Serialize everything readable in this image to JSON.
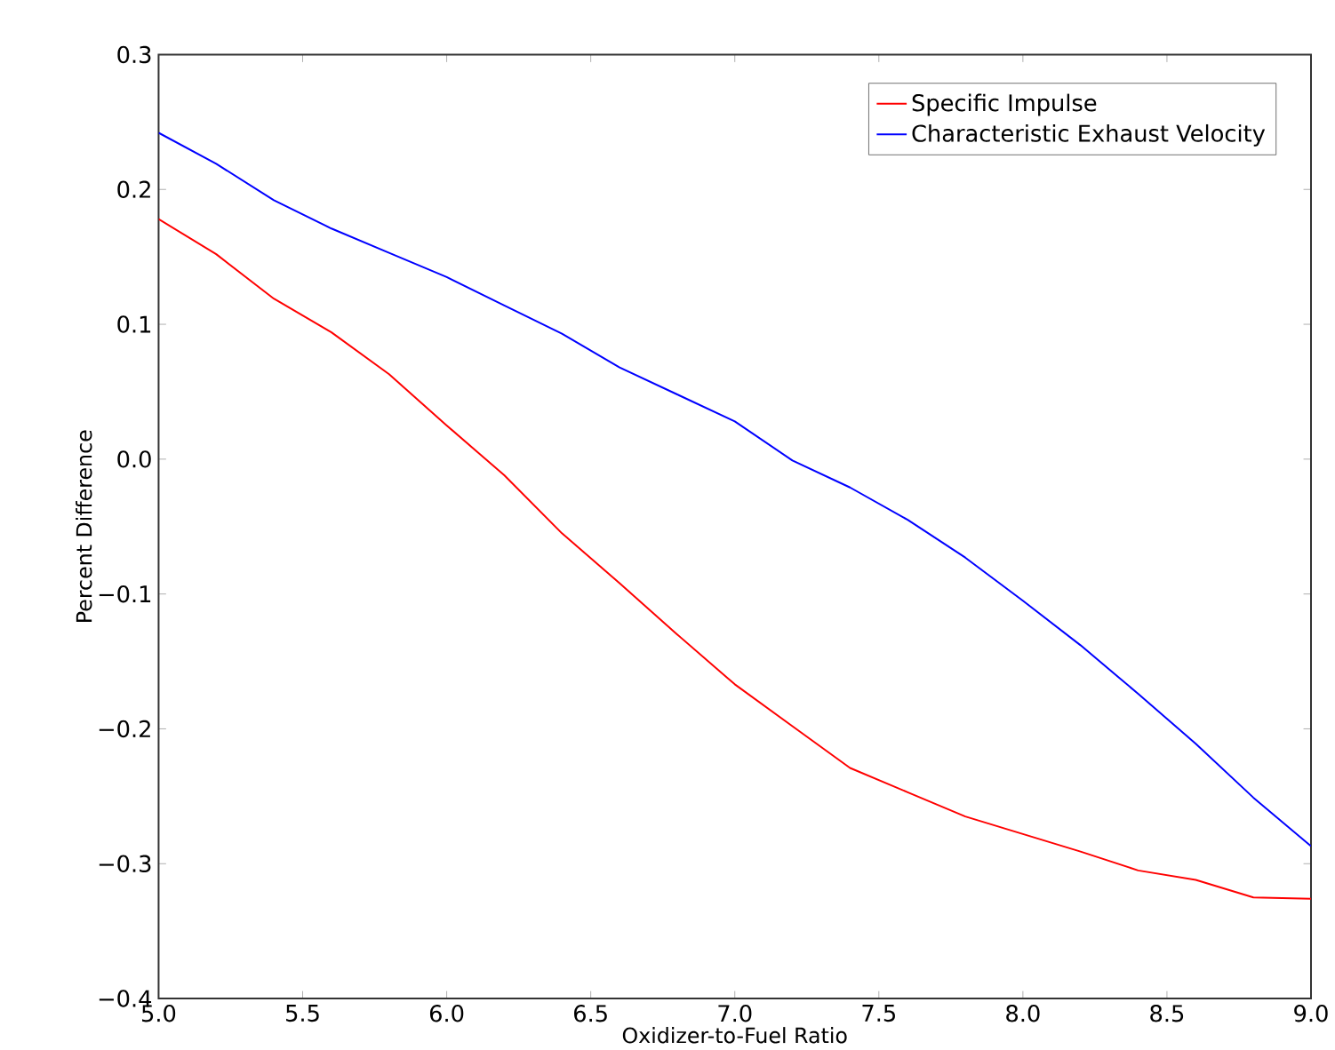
{
  "chart_data": {
    "type": "line",
    "xlabel": "Oxidizer-to-Fuel Ratio",
    "ylabel": "Percent Difference",
    "x": [
      5.0,
      5.2,
      5.4,
      5.6,
      5.8,
      6.0,
      6.2,
      6.4,
      6.6,
      6.8,
      7.0,
      7.2,
      7.4,
      7.6,
      7.8,
      8.0,
      8.2,
      8.4,
      8.6,
      8.8,
      9.0
    ],
    "series": [
      {
        "name": "Specific Impulse",
        "color": "#ff0000",
        "values": [
          0.178,
          0.152,
          0.119,
          0.094,
          0.063,
          0.025,
          -0.012,
          -0.055,
          -0.092,
          -0.13,
          -0.167,
          -0.198,
          -0.229,
          -0.247,
          -0.265,
          -0.278,
          -0.291,
          -0.305,
          -0.312,
          -0.325,
          -0.326
        ]
      },
      {
        "name": "Characteristic Exhaust Velocity",
        "color": "#0000ff",
        "values": [
          0.242,
          0.219,
          0.192,
          0.171,
          0.153,
          0.135,
          0.114,
          0.093,
          0.068,
          0.048,
          0.028,
          -0.001,
          -0.021,
          -0.045,
          -0.073,
          -0.105,
          -0.138,
          -0.174,
          -0.211,
          -0.251,
          -0.287
        ]
      }
    ],
    "xlim": [
      5.0,
      9.0
    ],
    "ylim": [
      -0.4,
      0.3
    ],
    "xticks": [
      {
        "value": 5.0,
        "label": "5.0"
      },
      {
        "value": 5.5,
        "label": "5.5"
      },
      {
        "value": 6.0,
        "label": "6.0"
      },
      {
        "value": 6.5,
        "label": "6.5"
      },
      {
        "value": 7.0,
        "label": "7.0"
      },
      {
        "value": 7.5,
        "label": "7.5"
      },
      {
        "value": 8.0,
        "label": "8.0"
      },
      {
        "value": 8.5,
        "label": "8.5"
      },
      {
        "value": 9.0,
        "label": "9.0"
      }
    ],
    "yticks": [
      {
        "value": -0.4,
        "label": "−0.4"
      },
      {
        "value": -0.3,
        "label": "−0.3"
      },
      {
        "value": -0.2,
        "label": "−0.2"
      },
      {
        "value": -0.1,
        "label": "−0.1"
      },
      {
        "value": 0.0,
        "label": "0.0"
      },
      {
        "value": 0.1,
        "label": "0.1"
      },
      {
        "value": 0.2,
        "label": "0.2"
      },
      {
        "value": 0.3,
        "label": "0.3"
      }
    ],
    "legend": "top right",
    "grid": false,
    "line_style": "solid",
    "marker": "none"
  }
}
